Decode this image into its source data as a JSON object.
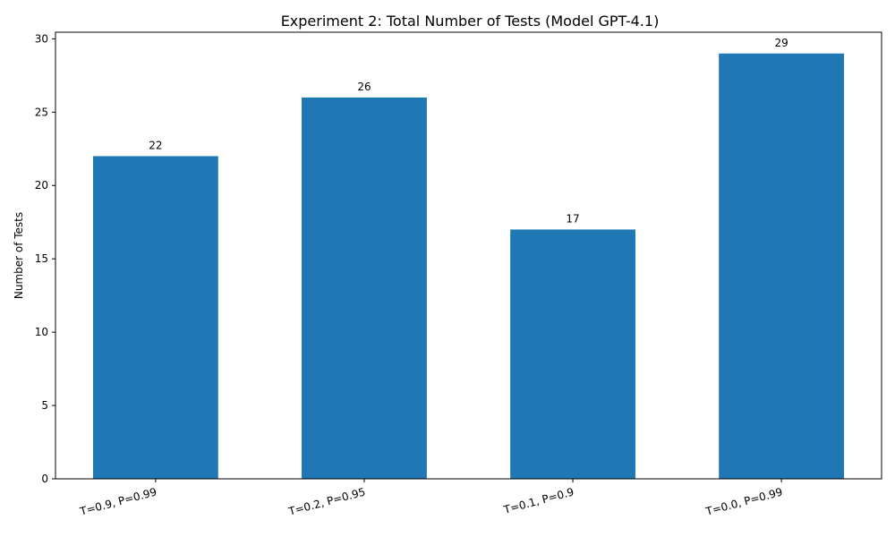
{
  "chart_data": {
    "type": "bar",
    "title": "Experiment 2: Total Number of Tests (Model GPT-4.1)",
    "xlabel": "",
    "ylabel": "Number of Tests",
    "categories": [
      "T=0.9, P=0.99",
      "T=0.2, P=0.95",
      "T=0.1, P=0.9",
      "T=0.0, P=0.99"
    ],
    "values": [
      22,
      26,
      17,
      29
    ],
    "data_labels": [
      "22",
      "26",
      "17",
      "29"
    ],
    "ylim": [
      0,
      30.45
    ],
    "yticks": [
      0,
      5,
      10,
      15,
      20,
      25,
      30
    ],
    "ytick_labels": [
      "0",
      "5",
      "10",
      "15",
      "20",
      "25",
      "30"
    ],
    "bar_color": "#1f77b4",
    "grid": false,
    "legend": "none"
  }
}
